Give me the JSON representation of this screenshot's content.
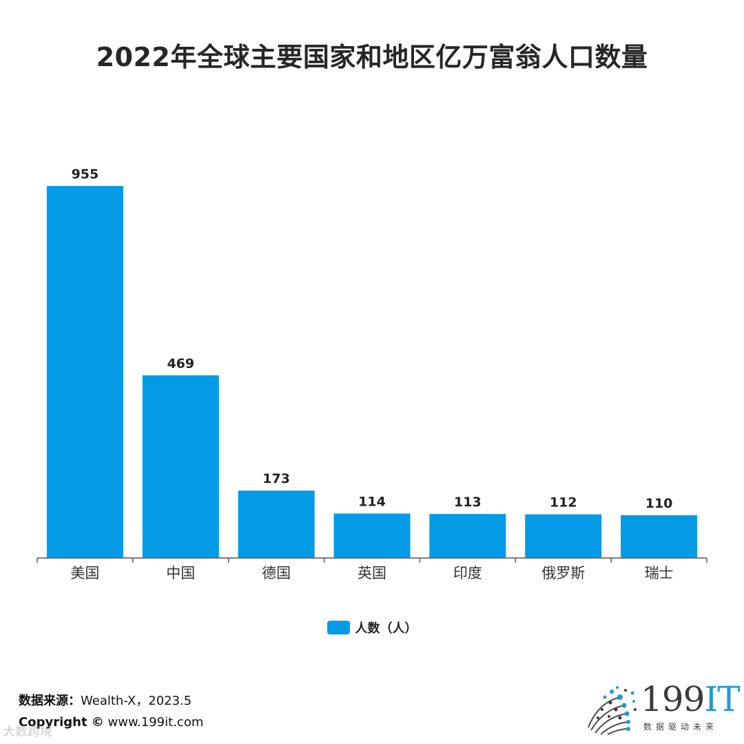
{
  "chart_data": {
    "type": "bar",
    "title": "2022年全球主要国家和地区亿万富翁人口数量",
    "categories": [
      "美国",
      "中国",
      "德国",
      "英国",
      "印度",
      "俄罗斯",
      "瑞士"
    ],
    "series": [
      {
        "name": "人数（人）",
        "values": [
          955,
          469,
          173,
          114,
          113,
          112,
          110
        ]
      }
    ],
    "data_labels": [
      "955",
      "469",
      "173",
      "114",
      "113",
      "112",
      "110"
    ],
    "ylim": [
      0,
      955
    ],
    "grid": false,
    "legend_position": "bottom-center",
    "colors": {
      "bar": "#039be5",
      "axis": "#555555",
      "label": "#222222"
    }
  },
  "footer": {
    "source_label": "数据来源：",
    "source_value": "Wealth-X，2023.5",
    "copyright_label": "Copyright ©",
    "copyright_value": "www.199it.com",
    "watermark": "大数跨境"
  },
  "logo": {
    "brand_digits": "199",
    "brand_letters": "IT",
    "tagline": "数据驱动未来",
    "icon": "dot-sphere-logo-icon"
  }
}
